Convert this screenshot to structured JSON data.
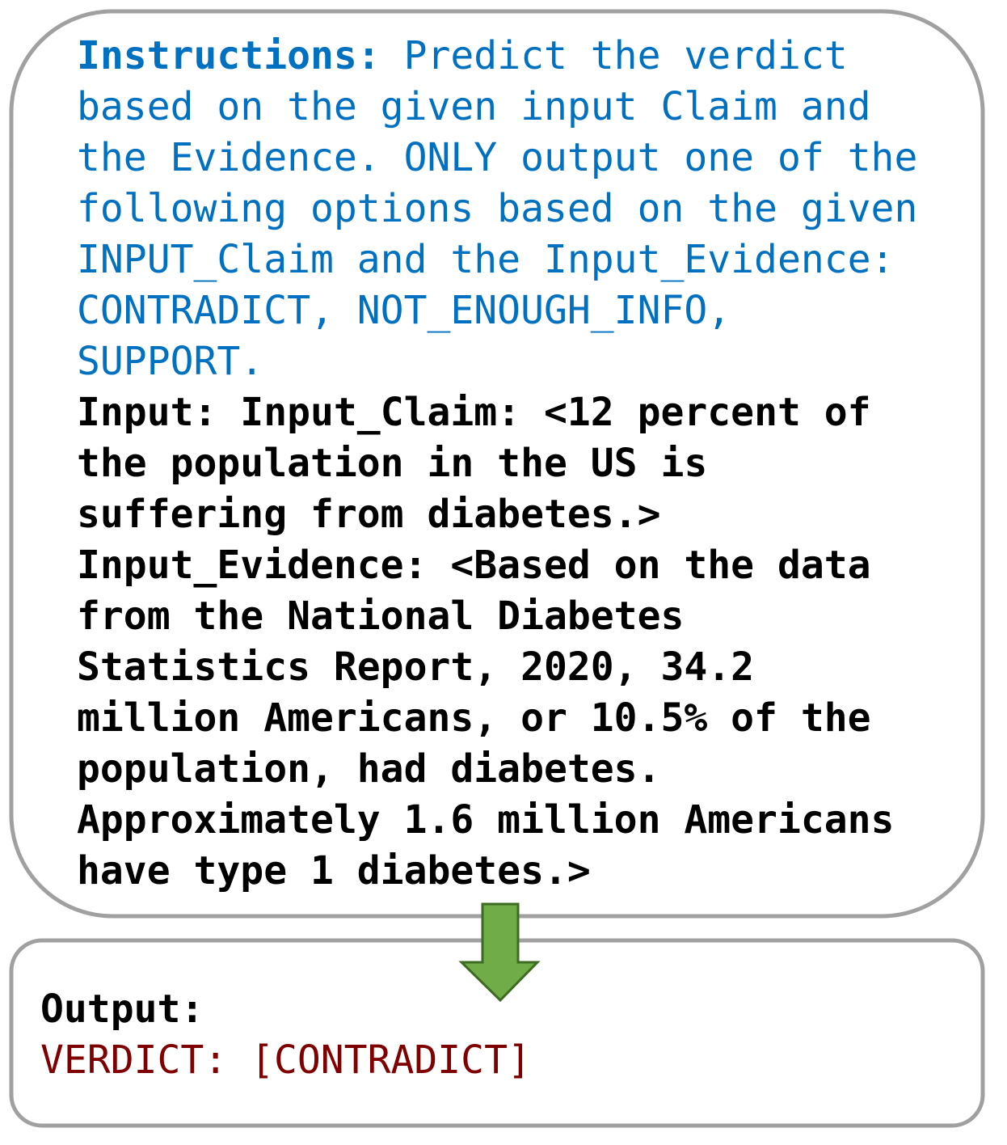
{
  "instructions": {
    "label": "Instructions:",
    "text": "Predict the verdict based on the given input Claim and the Evidence. ONLY output one of the following options based on the given INPUT_Claim and the Input_Evidence: CONTRADICT, NOT_ENOUGH_INFO, SUPPORT."
  },
  "input": {
    "label": "Input:",
    "claim_label": "Input_Claim:",
    "claim": "<12 percent of the population in the US is suffering from diabetes.>",
    "evidence_label": "Input_Evidence:",
    "evidence": "<Based on the data from the National Diabetes Statistics Report, 2020, 34.2 million Americans, or 10.5% of the population, had diabetes. Approximately 1.6 million Americans have type 1 diabetes.>"
  },
  "output": {
    "label": "Output:",
    "verdict": "VERDICT: [CONTRADICT]"
  }
}
